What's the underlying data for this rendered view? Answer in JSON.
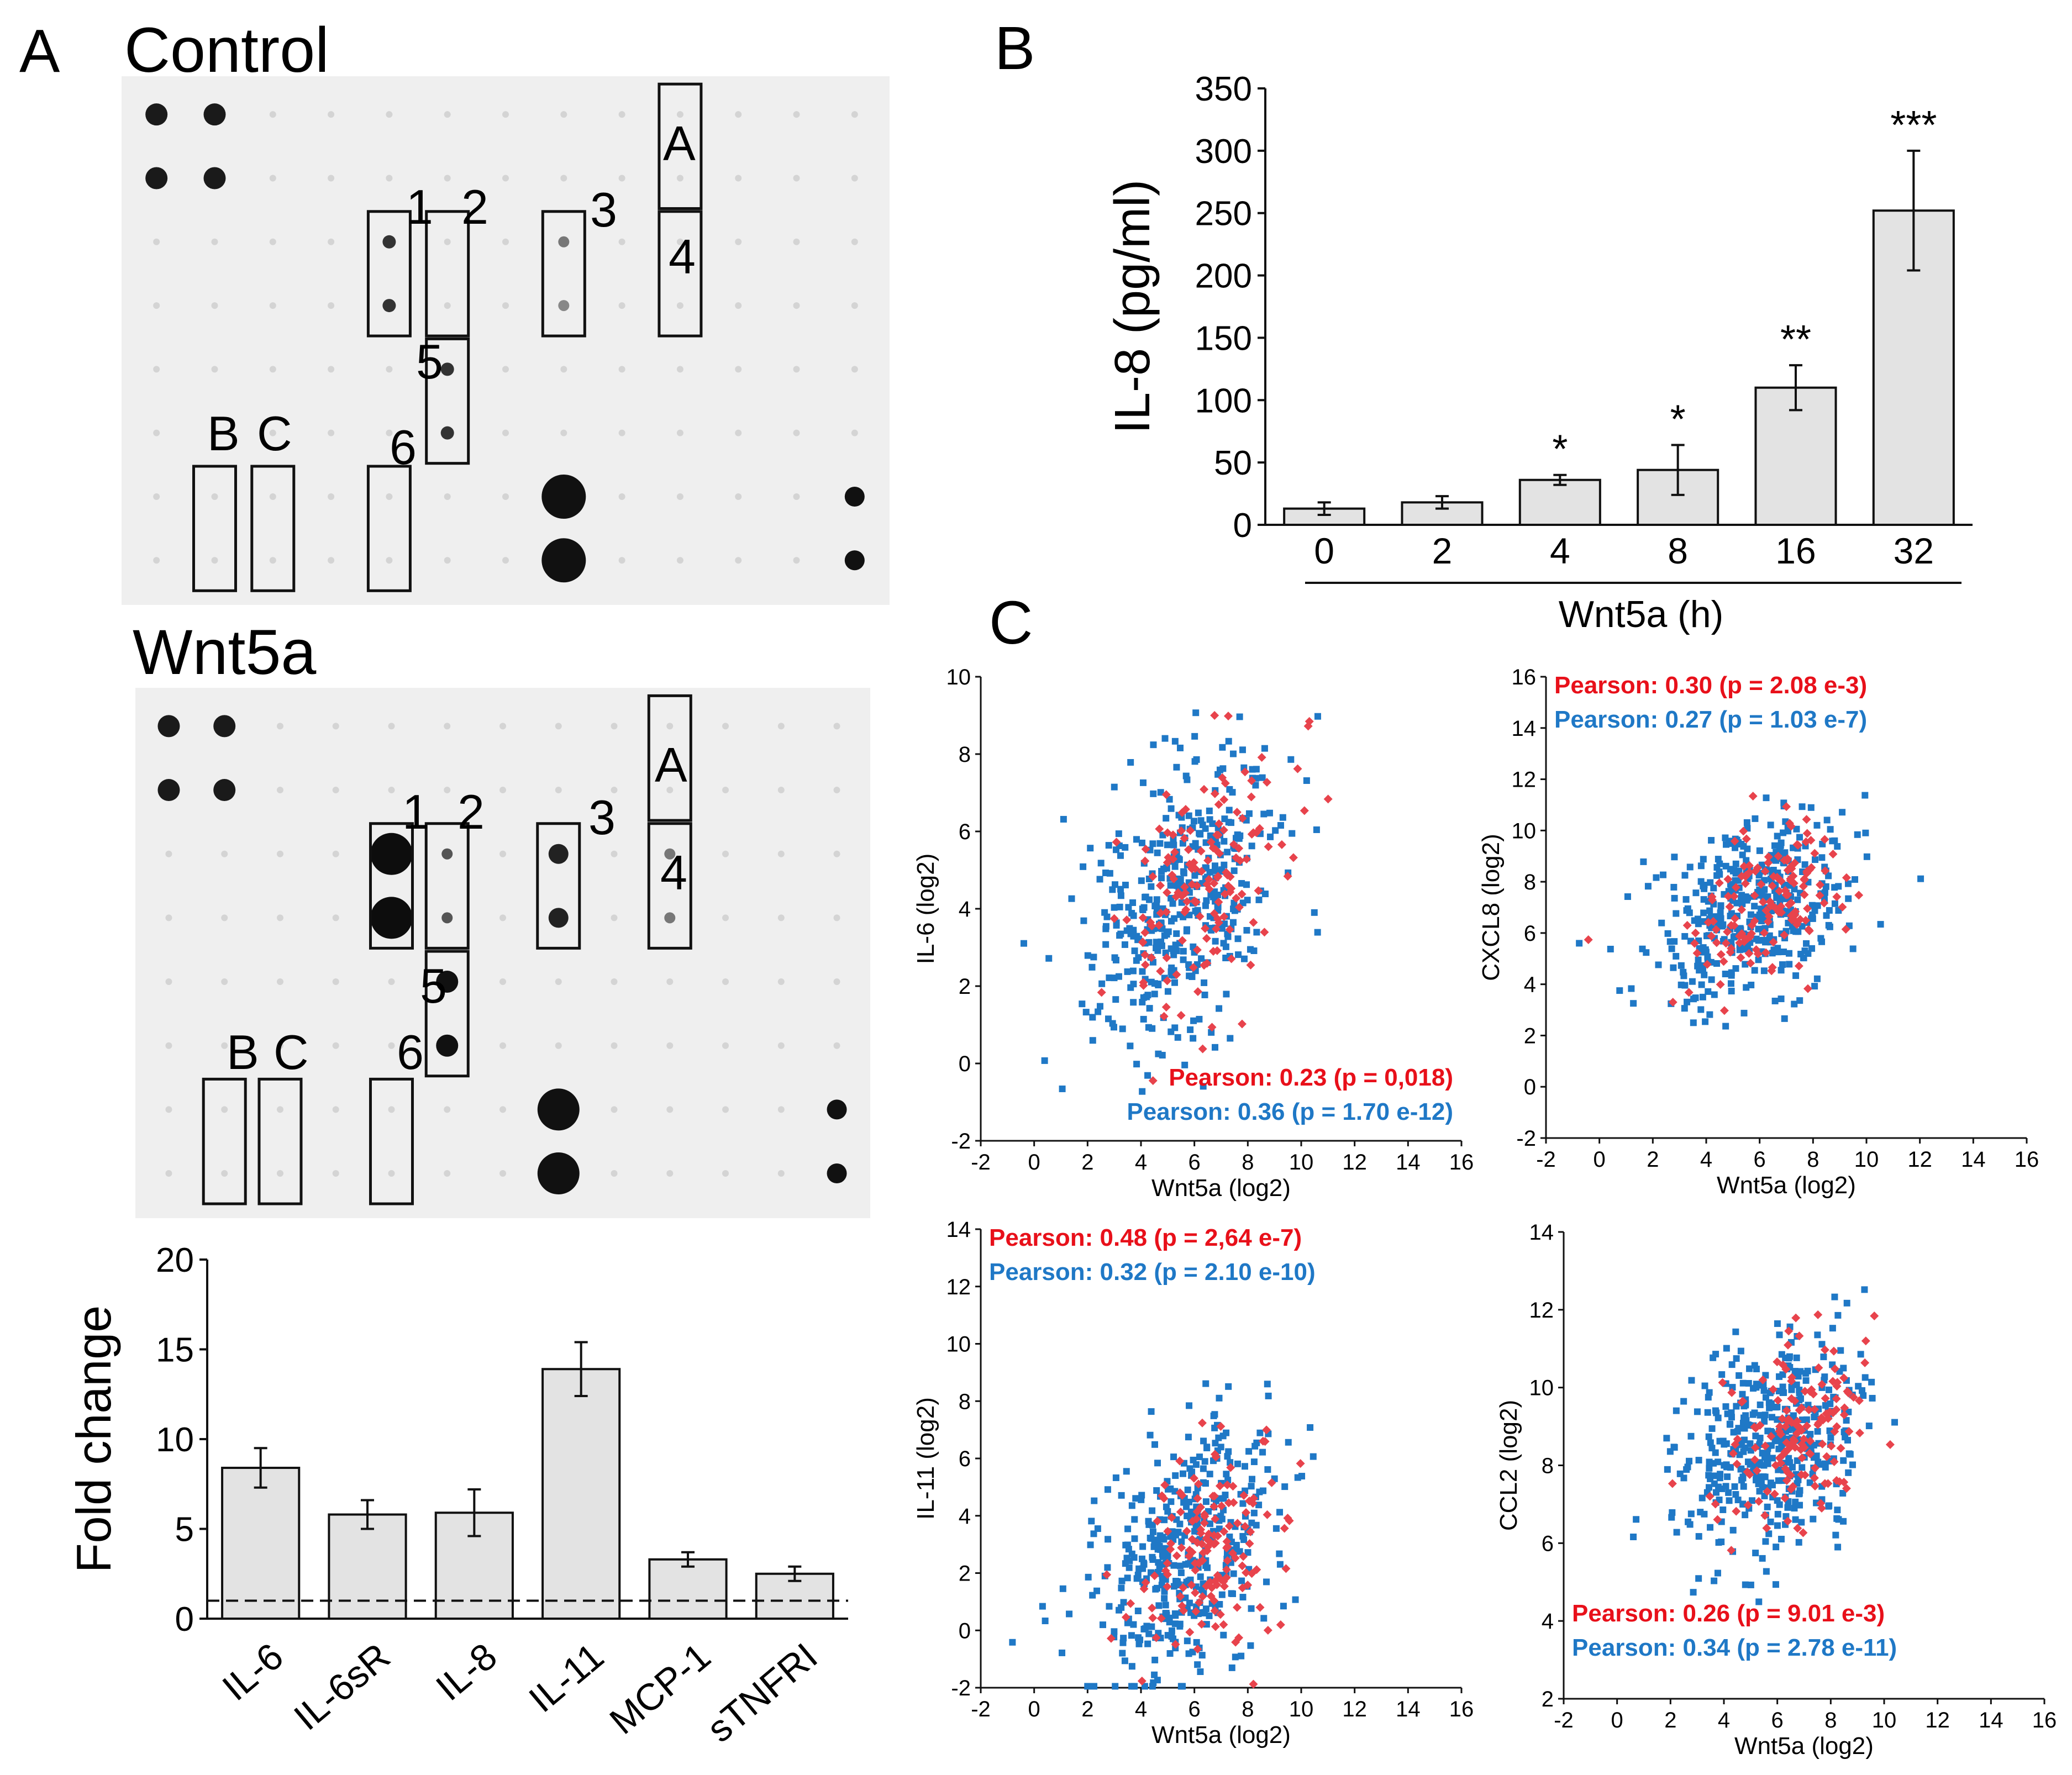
{
  "panels": {
    "A": {
      "letter": "A",
      "control_title": "Control",
      "wnt5a_title": "Wnt5a",
      "box_labels": [
        "1",
        "2",
        "3",
        "4",
        "5",
        "6",
        "A",
        "B",
        "C"
      ]
    },
    "B": {
      "letter": "B"
    },
    "C": {
      "letter": "C"
    }
  },
  "colors": {
    "bar_fill": "#e3e3e3",
    "red": "#e8434c",
    "blue": "#1f78c6",
    "red_text": "#e8101a",
    "blue_text": "#1f78c6"
  },
  "chart_data": [
    {
      "id": "il8_timecourse",
      "type": "bar",
      "ylabel": "IL-8 (pg/ml)",
      "xlabel": "Wnt5a (h)",
      "categories": [
        "0",
        "2",
        "4",
        "8",
        "16",
        "32"
      ],
      "values": [
        13,
        18,
        36,
        44,
        110,
        252
      ],
      "errors": [
        5,
        5,
        4,
        20,
        18,
        48
      ],
      "significance": [
        "",
        "",
        "*",
        "*",
        "**",
        "***"
      ],
      "ylim": [
        0,
        350
      ],
      "yticks": [
        "0",
        "50",
        "100",
        "150",
        "200",
        "250",
        "300",
        "350"
      ]
    },
    {
      "id": "fold_change",
      "type": "bar",
      "ylabel": "Fold change",
      "categories": [
        "IL-6",
        "IL-6sR",
        "IL-8",
        "IL-11",
        "MCP-1",
        "sTNFRI"
      ],
      "values": [
        8.4,
        5.8,
        5.9,
        13.9,
        3.3,
        2.5
      ],
      "errors": [
        1.1,
        0.8,
        1.3,
        1.5,
        0.4,
        0.4
      ],
      "reference_line": 1,
      "ylim": [
        0,
        20
      ],
      "yticks": [
        "0",
        "5",
        "10",
        "15",
        "20"
      ]
    },
    {
      "id": "scatter_il6",
      "type": "scatter",
      "xlabel": "Wnt5a (log2)",
      "ylabel": "IL-6 (log2)",
      "xlim": [
        -2,
        16
      ],
      "ylim": [
        -2,
        10
      ],
      "xticks": [
        "-2",
        "0",
        "2",
        "4",
        "6",
        "8",
        "10",
        "12",
        "14",
        "16"
      ],
      "yticks": [
        "-2",
        "0",
        "2",
        "4",
        "6",
        "8",
        "10"
      ],
      "center": [
        5.4,
        4.2
      ],
      "spread": [
        1.8,
        2.0
      ],
      "seed": 11,
      "legend_position": "bottom-right",
      "annotations": [
        {
          "text": "Pearson: 0.23 (p = 0,018)",
          "color": "red"
        },
        {
          "text": "Pearson: 0.36 (p = 1.70 e-12)",
          "color": "blue"
        }
      ]
    },
    {
      "id": "scatter_cxcl8",
      "type": "scatter",
      "xlabel": "Wnt5a (log2)",
      "ylabel": "CXCL8 (log2)",
      "xlim": [
        -2,
        16
      ],
      "ylim": [
        -2,
        16
      ],
      "xticks": [
        "-2",
        "0",
        "2",
        "4",
        "6",
        "8",
        "10",
        "12",
        "14",
        "16"
      ],
      "yticks": [
        "-2",
        "0",
        "2",
        "4",
        "6",
        "8",
        "10",
        "12",
        "14",
        "16"
      ],
      "center": [
        5.6,
        7.0
      ],
      "spread": [
        1.8,
        1.9
      ],
      "seed": 23,
      "legend_position": "top-left",
      "annotations": [
        {
          "text": "Pearson: 0.30 (p = 2.08 e-3)",
          "color": "red"
        },
        {
          "text": "Pearson: 0.27 (p = 1.03 e-7)",
          "color": "blue"
        }
      ]
    },
    {
      "id": "scatter_il11",
      "type": "scatter",
      "xlabel": "Wnt5a (log2)",
      "ylabel": "IL-11 (log2)",
      "xlim": [
        -2,
        16
      ],
      "ylim": [
        -2,
        14
      ],
      "xticks": [
        "-2",
        "0",
        "2",
        "4",
        "6",
        "8",
        "10",
        "12",
        "14",
        "16"
      ],
      "yticks": [
        "-2",
        "0",
        "2",
        "4",
        "6",
        "8",
        "10",
        "12",
        "14"
      ],
      "center": [
        5.6,
        2.6
      ],
      "spread": [
        1.8,
        2.4
      ],
      "seed": 37,
      "legend_position": "top-left",
      "annotations": [
        {
          "text": "Pearson: 0.48 (p = 2,64 e-7)",
          "color": "red"
        },
        {
          "text": "Pearson: 0.32 (p = 2.10 e-10)",
          "color": "blue"
        }
      ]
    },
    {
      "id": "scatter_ccl2",
      "type": "scatter",
      "xlabel": "Wnt5a (log2)",
      "ylabel": "CCL2 (log2)",
      "xlim": [
        -2,
        16
      ],
      "ylim": [
        2,
        14
      ],
      "xticks": [
        "-2",
        "0",
        "2",
        "4",
        "6",
        "8",
        "10",
        "12",
        "14",
        "16"
      ],
      "yticks": [
        "2",
        "4",
        "6",
        "8",
        "10",
        "12",
        "14"
      ],
      "center": [
        5.8,
        8.5
      ],
      "spread": [
        1.8,
        1.4
      ],
      "seed": 51,
      "legend_position": "bottom-left",
      "annotations": [
        {
          "text": "Pearson: 0.26 (p = 9.01 e-3)",
          "color": "red"
        },
        {
          "text": "Pearson: 0.34 (p = 2.78 e-11)",
          "color": "blue"
        }
      ]
    }
  ]
}
